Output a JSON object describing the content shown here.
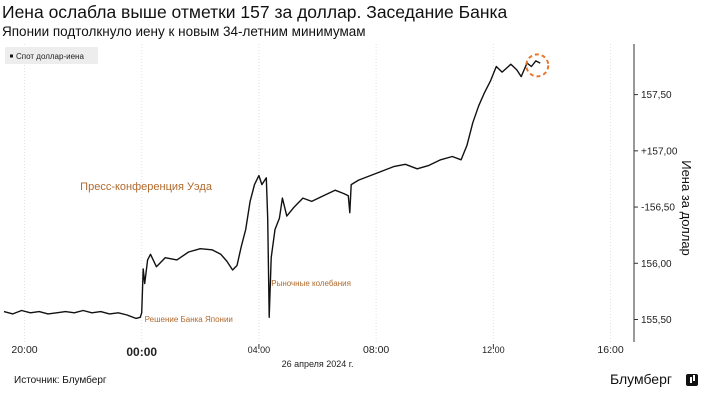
{
  "header": {
    "title": "Иена ослабла выше отметки 157 за доллар. Заседание Банка",
    "subtitle": "Японии подтолкнуло иену к новым 34-летним минимумам"
  },
  "footer": {
    "source": "Источник: Блумберг",
    "brand": "Блумберг",
    "brand_icon": "bloomberg-logo-icon"
  },
  "chart_data": {
    "type": "line",
    "legend": {
      "label": "Спот доллар-иена",
      "placement": "top-left"
    },
    "ylabel": "Иена за доллар",
    "y_axis_side": "right",
    "ylim": [
      155.3,
      157.95
    ],
    "yticks": [
      {
        "value": 155.5,
        "label": "155,50"
      },
      {
        "value": 156.0,
        "label": "156,00"
      },
      {
        "value": 156.5,
        "label": "-156,50"
      },
      {
        "value": 157.0,
        "label": "+157,00"
      },
      {
        "value": 157.5,
        "label": "157,50"
      }
    ],
    "x_unit": "hours relative to midnight, 26 April 2024",
    "xlim": [
      -4.7,
      16.8
    ],
    "xticks": [
      {
        "value": -4,
        "label": "20:00",
        "bold": false
      },
      {
        "value": 0,
        "label": "00:00",
        "bold": true
      },
      {
        "value": 4,
        "label": "04:00",
        "bold": false
      },
      {
        "value": 8,
        "label": "08:00",
        "bold": false
      },
      {
        "value": 12,
        "label": "12:00",
        "bold": false
      },
      {
        "value": 16,
        "label": "16:00",
        "bold": false
      }
    ],
    "date_label": "26 апреля 2024 г.",
    "series": [
      {
        "name": "Спот доллар-иена",
        "color": "#111111",
        "points": [
          [
            -4.7,
            155.57
          ],
          [
            -4.4,
            155.55
          ],
          [
            -4.1,
            155.58
          ],
          [
            -3.8,
            155.56
          ],
          [
            -3.5,
            155.57
          ],
          [
            -3.2,
            155.55
          ],
          [
            -2.9,
            155.56
          ],
          [
            -2.6,
            155.57
          ],
          [
            -2.3,
            155.56
          ],
          [
            -2.0,
            155.58
          ],
          [
            -1.7,
            155.56
          ],
          [
            -1.4,
            155.57
          ],
          [
            -1.1,
            155.55
          ],
          [
            -0.8,
            155.56
          ],
          [
            -0.5,
            155.54
          ],
          [
            -0.2,
            155.51
          ],
          [
            -0.05,
            155.52
          ],
          [
            0.0,
            155.56
          ],
          [
            0.05,
            155.95
          ],
          [
            0.1,
            155.82
          ],
          [
            0.2,
            156.03
          ],
          [
            0.3,
            156.08
          ],
          [
            0.5,
            155.97
          ],
          [
            0.8,
            156.05
          ],
          [
            1.2,
            156.03
          ],
          [
            1.6,
            156.1
          ],
          [
            2.0,
            156.13
          ],
          [
            2.4,
            156.12
          ],
          [
            2.7,
            156.08
          ],
          [
            2.9,
            156.02
          ],
          [
            3.1,
            155.94
          ],
          [
            3.25,
            155.98
          ],
          [
            3.4,
            156.15
          ],
          [
            3.55,
            156.3
          ],
          [
            3.7,
            156.55
          ],
          [
            3.85,
            156.7
          ],
          [
            4.0,
            156.78
          ],
          [
            4.1,
            156.7
          ],
          [
            4.25,
            156.76
          ],
          [
            4.3,
            156.4
          ],
          [
            4.35,
            155.52
          ],
          [
            4.42,
            156.05
          ],
          [
            4.55,
            156.3
          ],
          [
            4.7,
            156.4
          ],
          [
            4.8,
            156.58
          ],
          [
            4.95,
            156.42
          ],
          [
            5.2,
            156.5
          ],
          [
            5.5,
            156.58
          ],
          [
            5.8,
            156.55
          ],
          [
            6.2,
            156.6
          ],
          [
            6.6,
            156.65
          ],
          [
            6.9,
            156.62
          ],
          [
            7.05,
            156.6
          ],
          [
            7.1,
            156.45
          ],
          [
            7.15,
            156.7
          ],
          [
            7.4,
            156.74
          ],
          [
            7.8,
            156.78
          ],
          [
            8.2,
            156.82
          ],
          [
            8.6,
            156.86
          ],
          [
            9.0,
            156.88
          ],
          [
            9.4,
            156.84
          ],
          [
            9.8,
            156.87
          ],
          [
            10.2,
            156.92
          ],
          [
            10.6,
            156.95
          ],
          [
            10.9,
            156.92
          ],
          [
            11.1,
            157.05
          ],
          [
            11.3,
            157.25
          ],
          [
            11.5,
            157.4
          ],
          [
            11.7,
            157.52
          ],
          [
            11.9,
            157.62
          ],
          [
            12.1,
            157.75
          ],
          [
            12.3,
            157.7
          ],
          [
            12.6,
            157.77
          ],
          [
            12.8,
            157.72
          ],
          [
            12.95,
            157.66
          ],
          [
            13.05,
            157.72
          ],
          [
            13.15,
            157.78
          ],
          [
            13.3,
            157.75
          ],
          [
            13.45,
            157.8
          ],
          [
            13.6,
            157.78
          ]
        ]
      }
    ],
    "annotations": [
      {
        "id": "boj",
        "text": "Решение Банка Японии",
        "x": 0.1,
        "y": 155.48,
        "color": "#b06a2d",
        "size": "small"
      },
      {
        "id": "ueda",
        "text": "Пресс-конференция Уэда",
        "x": -2.1,
        "y": 156.65,
        "color": "#b06a2d",
        "size": "large"
      },
      {
        "id": "volatility",
        "text": "Рыночные колебания",
        "x": 4.42,
        "y": 155.8,
        "color": "#b06a2d",
        "size": "small"
      }
    ],
    "highlight": {
      "x": 13.5,
      "y": 157.76,
      "color": "#e8772e",
      "style": "dashed-circle"
    },
    "grid": {
      "vertical": true,
      "horizontal": false
    }
  }
}
